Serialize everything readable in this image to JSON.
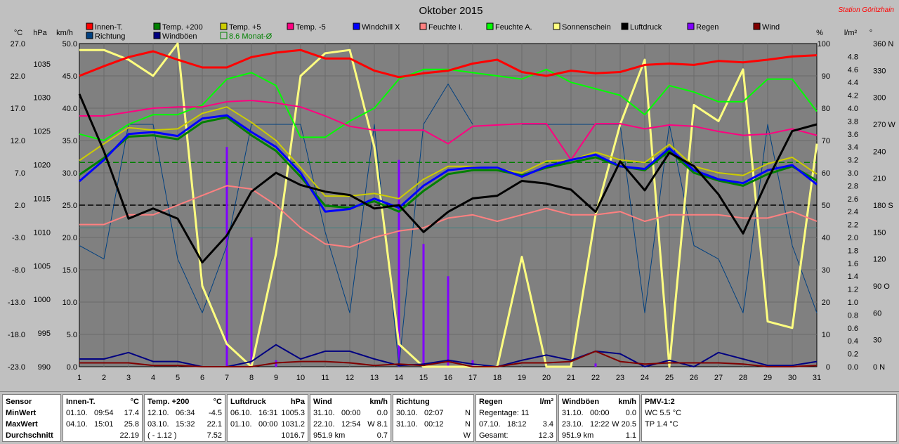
{
  "chart_data": {
    "type": "line",
    "title": "Oktober 2015",
    "station": "Station Göritzhain",
    "x": [
      1,
      2,
      3,
      4,
      5,
      6,
      7,
      8,
      9,
      10,
      11,
      12,
      13,
      14,
      15,
      16,
      17,
      18,
      19,
      20,
      21,
      22,
      23,
      24,
      25,
      26,
      27,
      28,
      29,
      30,
      31
    ],
    "axes": {
      "temp": {
        "unit": "°C",
        "ticks": [
          "27.0",
          "22.0",
          "17.0",
          "12.0",
          "7.0",
          "2.0",
          "-3.0",
          "-8.0",
          "-13.0",
          "-18.0",
          "-23.0"
        ]
      },
      "hpa": {
        "unit": "hPa",
        "ticks": [
          "1035",
          "1030",
          "1025",
          "1020",
          "1015",
          "1010",
          "1005",
          "1000",
          "995",
          "990"
        ]
      },
      "kmh": {
        "unit": "km/h",
        "ticks": [
          "50.0",
          "45.0",
          "40.0",
          "35.0",
          "30.0",
          "25.0",
          "20.0",
          "15.0",
          "10.0",
          "5.0",
          "0.0"
        ]
      },
      "pct": {
        "unit": "%",
        "ticks": [
          "100",
          "90",
          "80",
          "70",
          "60",
          "50",
          "40",
          "30",
          "20",
          "10",
          "0"
        ]
      },
      "rain": {
        "unit": "l/m²",
        "ticks": [
          "4.8",
          "4.6",
          "4.4",
          "4.2",
          "4.0",
          "3.8",
          "3.6",
          "3.4",
          "3.2",
          "3.0",
          "2.8",
          "2.6",
          "2.4",
          "2.2",
          "2.0",
          "1.8",
          "1.6",
          "1.4",
          "1.2",
          "1.0",
          "0.8",
          "0.6",
          "0.4",
          "0.2",
          "0.0"
        ]
      },
      "dir": {
        "unit": "°",
        "ticks": [
          "360 N",
          "330",
          "300",
          "270 W",
          "240",
          "210",
          "180 S",
          "150",
          "120",
          "90 O",
          "60",
          "30",
          "0 N"
        ]
      }
    },
    "legend": [
      {
        "name": "Innen-T.",
        "color": "#ff0000"
      },
      {
        "name": "Temp. +200",
        "color": "#008000"
      },
      {
        "name": "Temp. +5",
        "color": "#cccc00"
      },
      {
        "name": "Temp. -5",
        "color": "#ff0080"
      },
      {
        "name": "Windchill X",
        "color": "#0000ff"
      },
      {
        "name": "Feuchte I.",
        "color": "#ff8080"
      },
      {
        "name": "Feuchte A.",
        "color": "#00ff00"
      },
      {
        "name": "Sonnenschein",
        "color": "#ffff80"
      },
      {
        "name": "Luftdruck",
        "color": "#000000"
      },
      {
        "name": "Regen",
        "color": "#8000ff"
      },
      {
        "name": "Wind",
        "color": "#800000"
      },
      {
        "name": "Richtung",
        "color": "#004080"
      },
      {
        "name": "Windböen",
        "color": "#000080"
      }
    ],
    "monthly_avg_label": "8.6 Monat-Ø",
    "series": [
      {
        "name": "Innen-T.",
        "axis": "temp",
        "color": "#ff0000",
        "width": 3,
        "values": [
          22.0,
          23.5,
          24.9,
          25.8,
          24.5,
          23.3,
          23.3,
          24.9,
          25.6,
          26.0,
          24.7,
          24.7,
          22.8,
          21.8,
          22.4,
          22.8,
          23.9,
          24.5,
          22.6,
          22.0,
          22.8,
          22.4,
          22.6,
          23.7,
          23.9,
          23.7,
          24.3,
          24.1,
          24.5,
          25.0,
          25.2
        ]
      },
      {
        "name": "Temp. +200",
        "axis": "temp",
        "color": "#008000",
        "width": 3,
        "values": [
          6.7,
          9.3,
          12.6,
          12.8,
          12.2,
          14.8,
          15.6,
          12.8,
          10.4,
          6.4,
          1.9,
          1.6,
          2.6,
          1.0,
          4.2,
          6.8,
          7.4,
          7.4,
          6.6,
          7.8,
          8.6,
          9.4,
          8.0,
          7.4,
          10.4,
          7.0,
          5.8,
          5.0,
          6.8,
          8.0,
          5.8
        ]
      },
      {
        "name": "Temp. +5",
        "axis": "temp",
        "color": "#cccc00",
        "width": 2,
        "values": [
          8.9,
          11.5,
          14.0,
          13.6,
          13.8,
          16.2,
          17.2,
          14.8,
          12.0,
          7.8,
          3.4,
          3.4,
          3.8,
          3.0,
          6.0,
          8.0,
          8.0,
          7.6,
          7.0,
          8.8,
          9.0,
          10.2,
          9.0,
          8.6,
          11.4,
          8.0,
          7.0,
          6.6,
          8.4,
          9.4,
          6.8
        ]
      },
      {
        "name": "Temp. -5",
        "axis": "temp",
        "color": "#ff0080",
        "width": 2,
        "values": [
          15.8,
          15.8,
          16.4,
          17.0,
          17.2,
          17.2,
          18.0,
          18.2,
          17.8,
          17.2,
          15.8,
          14.2,
          13.6,
          13.6,
          13.6,
          11.5,
          14.2,
          14.4,
          14.6,
          14.6,
          9.0,
          14.6,
          14.6,
          13.8,
          14.4,
          14.2,
          13.4,
          12.8,
          13.0,
          13.8,
          12.8
        ]
      },
      {
        "name": "Windchill X",
        "axis": "temp",
        "color": "#0000ff",
        "width": 3,
        "values": [
          5.7,
          9.0,
          13.0,
          13.3,
          12.7,
          15.4,
          15.9,
          13.3,
          11.0,
          7.0,
          1.0,
          1.4,
          3.0,
          1.6,
          5.0,
          7.4,
          7.8,
          7.8,
          6.4,
          8.0,
          9.0,
          9.8,
          8.0,
          7.6,
          10.8,
          7.4,
          6.0,
          5.4,
          7.4,
          8.2,
          5.2
        ]
      },
      {
        "name": "Feuchte I.",
        "axis": "pct",
        "color": "#ff8080",
        "width": 2,
        "values": [
          44,
          44,
          47,
          47,
          50,
          53,
          56,
          55,
          50,
          43,
          38,
          37,
          40,
          42,
          43,
          46,
          47,
          45,
          47,
          49,
          47,
          47,
          48,
          45,
          47,
          47,
          47,
          46,
          46,
          48,
          45
        ]
      },
      {
        "name": "Feuchte A.",
        "axis": "pct",
        "color": "#00ff00",
        "width": 2,
        "values": [
          72,
          70,
          75,
          78,
          78,
          81,
          89,
          91,
          87,
          71,
          71,
          76,
          80,
          89,
          92,
          92,
          91,
          90,
          89,
          92,
          88,
          86,
          84,
          78,
          87,
          85,
          82,
          82,
          89,
          89,
          79
        ]
      },
      {
        "name": "Sonnenschein",
        "axis": "pct",
        "color": "#ffff80",
        "width": 3,
        "values": [
          98,
          98,
          95,
          90,
          100,
          25,
          7,
          0,
          35,
          90,
          97,
          98,
          68,
          7,
          0,
          0,
          0,
          0,
          34,
          0,
          0,
          47,
          75,
          95,
          0,
          81,
          76,
          92,
          14,
          12,
          69
        ]
      },
      {
        "name": "Luftdruck",
        "axis": "hpa",
        "color": "#000000",
        "width": 3,
        "values": [
          1030.5,
          1022.0,
          1012.0,
          1013.5,
          1012.0,
          1005.5,
          1009.5,
          1016.0,
          1018.8,
          1017.0,
          1016.0,
          1015.5,
          1013.5,
          1014.0,
          1010.0,
          1013.0,
          1015.0,
          1015.4,
          1017.6,
          1017.2,
          1016.3,
          1013.0,
          1020.5,
          1016.2,
          1021.8,
          1019.8,
          1015.6,
          1009.8,
          1017.8,
          1025.0,
          1026.0
        ]
      },
      {
        "name": "Richtung",
        "axis": "dir",
        "color": "#004080",
        "width": 1,
        "values": [
          135,
          120,
          270,
          270,
          120,
          60,
          135,
          270,
          270,
          270,
          150,
          60,
          270,
          0,
          270,
          315,
          270,
          null,
          270,
          270,
          270,
          270,
          270,
          60,
          270,
          135,
          120,
          60,
          270,
          135,
          60
        ]
      },
      {
        "name": "Windböen",
        "axis": "kmh",
        "color": "#000080",
        "width": 2,
        "values": [
          1.2,
          1.2,
          2.2,
          0.8,
          0.8,
          0.0,
          0.0,
          0.8,
          3.4,
          1.2,
          2.4,
          2.4,
          1.2,
          0.2,
          0.4,
          1.0,
          0.4,
          0.0,
          1.0,
          1.8,
          1.0,
          2.4,
          2.0,
          0.0,
          1.0,
          0.0,
          2.2,
          1.2,
          0.2,
          0.2,
          0.8
        ]
      },
      {
        "name": "Wind",
        "axis": "kmh",
        "color": "#800000",
        "width": 2,
        "values": [
          0.6,
          0.6,
          0.6,
          0.2,
          0.2,
          0.0,
          0.0,
          0.0,
          0.6,
          0.8,
          0.8,
          0.6,
          0.2,
          0.4,
          0.2,
          0.8,
          0.0,
          0.0,
          0.6,
          0.6,
          0.8,
          2.4,
          0.8,
          0.4,
          0.6,
          0.6,
          0.6,
          0.4,
          0.0,
          0.0,
          0.2
        ]
      }
    ],
    "rain_bars": [
      {
        "x": 7,
        "value": 3.4
      },
      {
        "x": 8,
        "value": 2.0
      },
      {
        "x": 9,
        "value": 0.1
      },
      {
        "x": 14,
        "value": 3.2
      },
      {
        "x": 15,
        "value": 1.9
      },
      {
        "x": 16,
        "value": 1.4
      },
      {
        "x": 17,
        "value": 0.1
      },
      {
        "x": 22,
        "value": 0.05
      }
    ],
    "ref_lines": [
      {
        "axis": "temp",
        "value": 8.6,
        "color": "#008000",
        "style": "dashed"
      },
      {
        "axis": "hpa",
        "value": 1014.0,
        "color": "#000000",
        "style": "dashed"
      },
      {
        "axis": "pct",
        "value": 43,
        "color": "#408080",
        "style": "solid"
      }
    ]
  },
  "stats": {
    "sensor": {
      "title": "Sensor",
      "rows": [
        "MinWert",
        "MaxWert",
        "Durchschnitt"
      ]
    },
    "innen": {
      "title": "Innen-T.",
      "unit": "°C",
      "rows": [
        [
          "01.10.",
          "09:54",
          "17.4"
        ],
        [
          "04.10.",
          "15:01",
          "25.8"
        ],
        [
          "",
          "",
          "22.19"
        ]
      ]
    },
    "temp200": {
      "title": "Temp. +200",
      "unit": "°C",
      "rows": [
        [
          "12.10.",
          "06:34",
          "-4.5"
        ],
        [
          "03.10.",
          "15:32",
          "22.1"
        ],
        [
          "( - 1.12 )",
          "",
          "7.52"
        ]
      ]
    },
    "luftdruck": {
      "title": "Luftdruck",
      "unit": "hPa",
      "rows": [
        [
          "06.10.",
          "16:31",
          "1005.3"
        ],
        [
          "01.10.",
          "00:00",
          "1031.2"
        ],
        [
          "",
          "",
          "1016.7"
        ]
      ]
    },
    "wind": {
      "title": "Wind",
      "unit": "km/h",
      "rows": [
        [
          "31.10.",
          "00:00",
          "0.0"
        ],
        [
          "22.10.",
          "12:54",
          "W 8.1"
        ],
        [
          "951.9 km",
          "",
          "0.7"
        ]
      ]
    },
    "richtung": {
      "title": "Richtung",
      "unit": "",
      "rows": [
        [
          "30.10.",
          "02:07",
          "N"
        ],
        [
          "31.10.",
          "00:12",
          "N"
        ],
        [
          "",
          "",
          "W"
        ]
      ]
    },
    "regen": {
      "title": "Regen",
      "unit": "l/m²",
      "rows": [
        [
          "Regentage: 11",
          "",
          ""
        ],
        [
          "07.10.",
          "18:12",
          "3.4"
        ],
        [
          "Gesamt:",
          "",
          "12.3"
        ]
      ]
    },
    "windboeen": {
      "title": "Windböen",
      "unit": "km/h",
      "rows": [
        [
          "31.10.",
          "00:00",
          "0.0"
        ],
        [
          "23.10.",
          "12:22",
          "W 20.5"
        ],
        [
          "951.9 km",
          "",
          "1.1"
        ]
      ]
    },
    "pmv": {
      "title": "PMV-1:2",
      "rows": [
        "WC 5.5 °C",
        "TP 1.4 °C"
      ]
    }
  }
}
